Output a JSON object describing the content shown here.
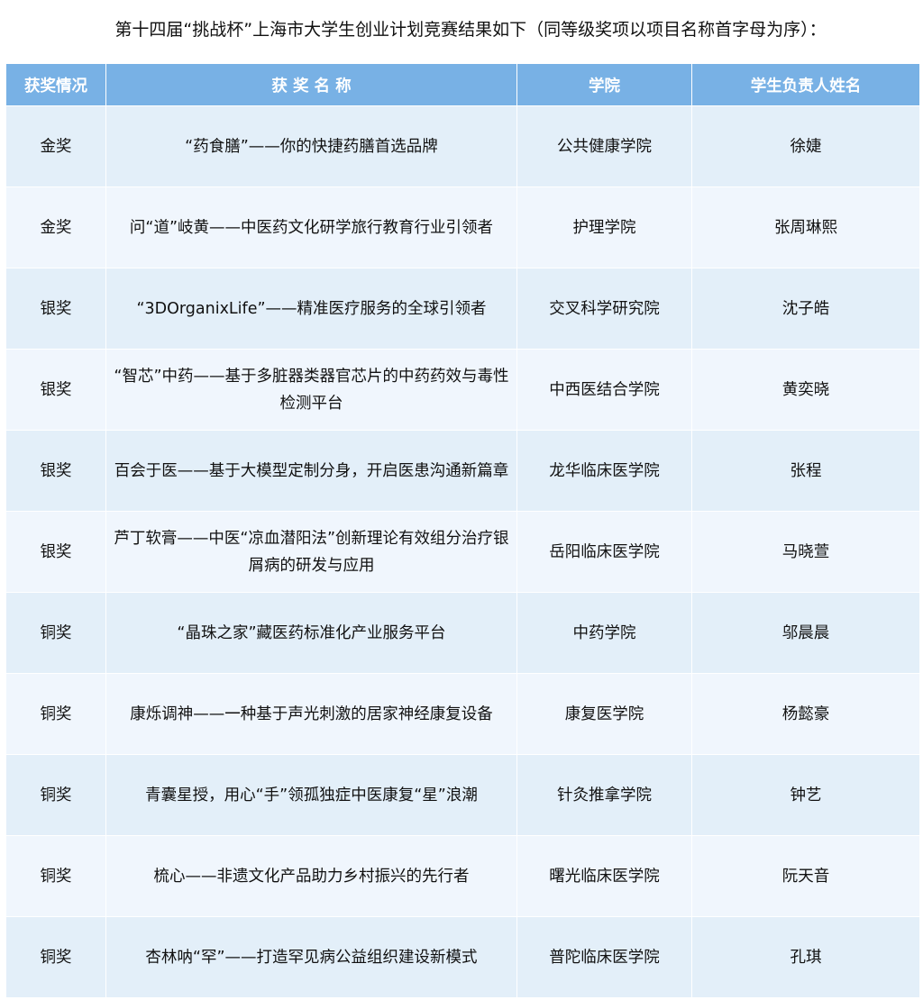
{
  "title": "第十四届“挑战杯”上海市大学生创业计划竞赛结果如下（同等级奖项以项目名称首字母为序）：",
  "table": {
    "headers": [
      "获奖情况",
      "获 奖 名 称",
      "学院",
      "学生负责人姓名"
    ],
    "rows": [
      [
        "金奖",
        "“药食膳”——你的快捷药膳首选品牌",
        "公共健康学院",
        "徐婕"
      ],
      [
        "金奖",
        "问“道”岐黄——中医药文化研学旅行教育行业引领者",
        "护理学院",
        "张周琳熙"
      ],
      [
        "银奖",
        "“3DOrganixLife”——精准医疗服务的全球引领者",
        "交叉科学研究院",
        "沈子皓"
      ],
      [
        "银奖",
        "“智芯”中药——基于多脏器类器官芯片的中药药效与毒性检测平台",
        "中西医结合学院",
        "黄奕晓"
      ],
      [
        "银奖",
        "百会于医——基于大模型定制分身，开启医患沟通新篇章",
        "龙华临床医学院",
        "张程"
      ],
      [
        "银奖",
        "芦丁软膏——中医“凉血潜阳法”创新理论有效组分治疗银屑病的研发与应用",
        "岳阳临床医学院",
        "马晓萱"
      ],
      [
        "铜奖",
        "“晶珠之家”藏医药标准化产业服务平台",
        "中药学院",
        "邬晨晨"
      ],
      [
        "铜奖",
        "康烁调神——一种基于声光刺激的居家神经康复设备",
        "康复医学院",
        "杨懿豪"
      ],
      [
        "铜奖",
        "青囊星授，用心“手”领孤独症中医康复“星”浪潮",
        "针灸推拿学院",
        "钟艺"
      ],
      [
        "铜奖",
        "梳心——非遗文化产品助力乡村振兴的先行者",
        "曙光临床医学院",
        "阮天音"
      ],
      [
        "铜奖",
        "杏林呐“罕”——打造罕见病公益组织建设新模式",
        "普陀临床医学院",
        "孔琪"
      ]
    ]
  },
  "colors": {
    "header_bg": "#78b1e5",
    "row_odd": "#e3eff9",
    "row_even": "#f0f6fd"
  }
}
